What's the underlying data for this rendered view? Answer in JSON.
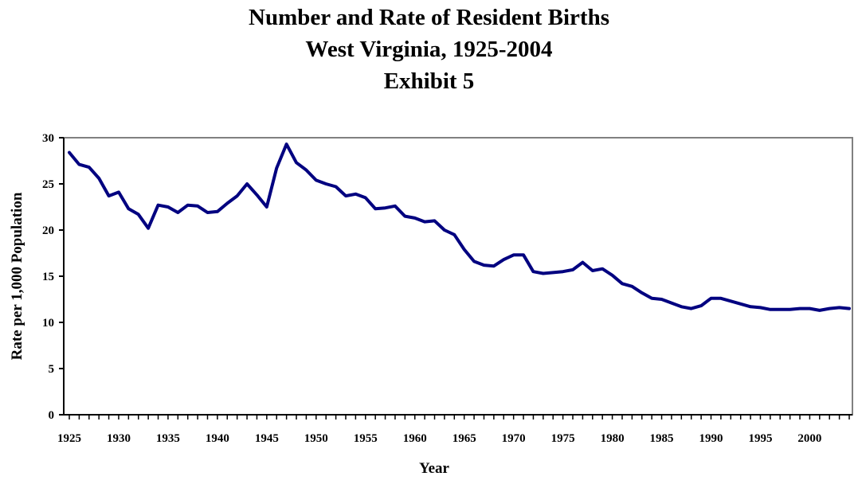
{
  "chart_data": {
    "type": "line",
    "title": [
      "Number and Rate of Resident Births",
      "West Virginia, 1925-2004",
      "Exhibit 5"
    ],
    "xlabel": "Year",
    "ylabel": "Rate per 1,000 Population",
    "xlim": [
      1925,
      2004
    ],
    "ylim": [
      0,
      30
    ],
    "yticks": [
      0,
      5,
      10,
      15,
      20,
      25,
      30
    ],
    "xticks": [
      1925,
      1930,
      1935,
      1940,
      1945,
      1950,
      1955,
      1960,
      1965,
      1970,
      1975,
      1980,
      1985,
      1990,
      1995,
      2000
    ],
    "grid": false,
    "legend": "none",
    "colors": {
      "line": "#000080",
      "plot_border": "#808080",
      "axis": "#000000"
    },
    "x": [
      1925,
      1926,
      1927,
      1928,
      1929,
      1930,
      1931,
      1932,
      1933,
      1934,
      1935,
      1936,
      1937,
      1938,
      1939,
      1940,
      1941,
      1942,
      1943,
      1944,
      1945,
      1946,
      1947,
      1948,
      1949,
      1950,
      1951,
      1952,
      1953,
      1954,
      1955,
      1956,
      1957,
      1958,
      1959,
      1960,
      1961,
      1962,
      1963,
      1964,
      1965,
      1966,
      1967,
      1968,
      1969,
      1970,
      1971,
      1972,
      1973,
      1974,
      1975,
      1976,
      1977,
      1978,
      1979,
      1980,
      1981,
      1982,
      1983,
      1984,
      1985,
      1986,
      1987,
      1988,
      1989,
      1990,
      1991,
      1992,
      1993,
      1994,
      1995,
      1996,
      1997,
      1998,
      1999,
      2000,
      2001,
      2002,
      2003,
      2004
    ],
    "series": [
      {
        "values": [
          28.4,
          27.1,
          26.8,
          25.6,
          23.7,
          24.1,
          22.3,
          21.7,
          20.2,
          22.7,
          22.5,
          21.9,
          22.7,
          22.6,
          21.9,
          22.0,
          22.9,
          23.7,
          25.0,
          23.8,
          22.5,
          26.7,
          29.3,
          27.3,
          26.5,
          25.4,
          25.0,
          24.7,
          23.7,
          23.9,
          23.5,
          22.3,
          22.4,
          22.6,
          21.5,
          21.3,
          20.9,
          21.0,
          20.0,
          19.5,
          17.9,
          16.6,
          16.2,
          16.1,
          16.8,
          17.3,
          17.3,
          15.5,
          15.3,
          15.4,
          15.5,
          15.7,
          16.5,
          15.6,
          15.8,
          15.1,
          14.2,
          13.9,
          13.2,
          12.6,
          12.5,
          12.1,
          11.7,
          11.5,
          11.8,
          12.6,
          12.6,
          12.3,
          12.0,
          11.7,
          11.6,
          11.4,
          11.4,
          11.4,
          11.5,
          11.5,
          11.3,
          11.5,
          11.6,
          11.5
        ]
      }
    ]
  }
}
